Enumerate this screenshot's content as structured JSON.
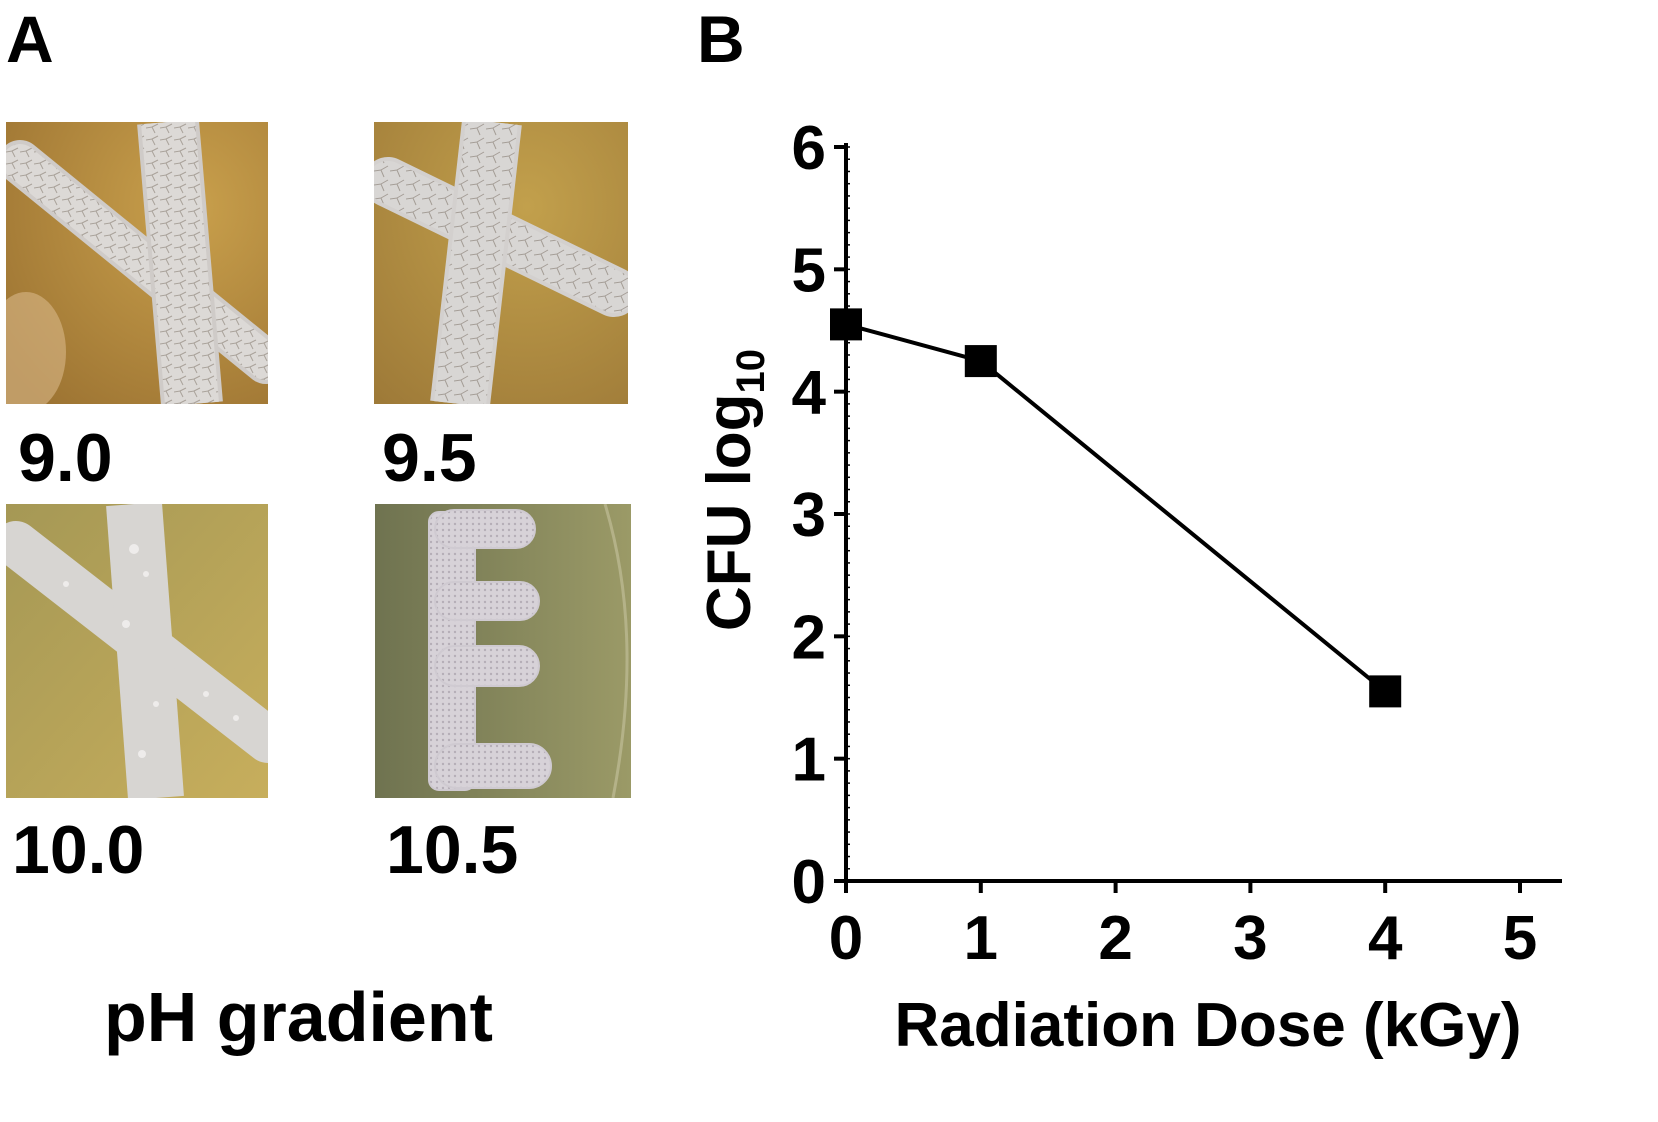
{
  "panels": {
    "a": {
      "letter": "A",
      "plates": [
        {
          "label": "9.0"
        },
        {
          "label": "9.5"
        },
        {
          "label": "10.0"
        },
        {
          "label": "10.5"
        }
      ],
      "caption": "pH gradient"
    },
    "b": {
      "letter": "B"
    }
  },
  "colors": {
    "agar_warm": "#b68a3d",
    "agar_yellow": "#c1a045",
    "agar_olive": "#8f8a58",
    "colony": "#d9d6d2",
    "line": "#000000"
  },
  "chart_data": {
    "type": "line",
    "title": "",
    "xlabel": "Radiation Dose (kGy)",
    "ylabel": "CFU log",
    "ylabel_subscript": "10",
    "xlim": [
      0,
      5
    ],
    "ylim": [
      0,
      6
    ],
    "xticks": [
      0,
      1,
      2,
      3,
      4,
      5
    ],
    "yticks": [
      0,
      1,
      2,
      3,
      4,
      5,
      6
    ],
    "grid": false,
    "series": [
      {
        "marker": "square",
        "color": "#000000",
        "x": [
          0,
          1,
          4
        ],
        "y": [
          4.55,
          4.25,
          1.55
        ]
      }
    ]
  }
}
